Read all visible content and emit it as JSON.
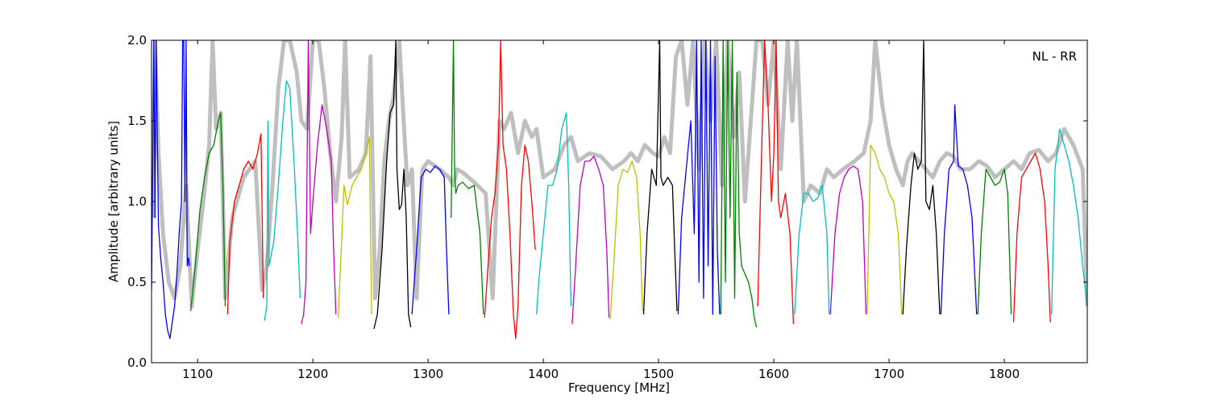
{
  "chart_data": {
    "type": "line",
    "annotation": "NL - RR",
    "xlabel": "Frequency [MHz]",
    "ylabel": "Amplitude [arbitrary units]",
    "xlim": [
      1060,
      1872
    ],
    "ylim": [
      0.0,
      2.0
    ],
    "x_ticks": [
      1100,
      1200,
      1300,
      1400,
      1500,
      1600,
      1700,
      1800
    ],
    "x_tick_labels": [
      "1100",
      "1200",
      "1300",
      "1400",
      "1500",
      "1600",
      "1700",
      "1800"
    ],
    "y_ticks": [
      0.0,
      0.5,
      1.0,
      1.5,
      2.0
    ],
    "y_tick_labels": [
      "0.0",
      "0.5",
      "1.0",
      "1.5",
      "2.0"
    ],
    "grid": false,
    "background_trace": {
      "color": "#bfbfbf",
      "x": [
        1061,
        1063,
        1066,
        1070,
        1075,
        1080,
        1085,
        1090,
        1095,
        1100,
        1105,
        1110,
        1113,
        1116,
        1120,
        1124,
        1130,
        1140,
        1150,
        1156,
        1160,
        1165,
        1170,
        1175,
        1180,
        1186,
        1190,
        1195,
        1200,
        1205,
        1210,
        1215,
        1220,
        1225,
        1228,
        1232,
        1240,
        1246,
        1250,
        1254,
        1258,
        1262,
        1266,
        1270,
        1275,
        1278,
        1282,
        1286,
        1290,
        1295,
        1300,
        1310,
        1318,
        1322,
        1325,
        1330,
        1340,
        1350,
        1356,
        1362,
        1366,
        1372,
        1378,
        1384,
        1390,
        1394,
        1400,
        1410,
        1418,
        1424,
        1430,
        1440,
        1450,
        1460,
        1470,
        1476,
        1482,
        1488,
        1495,
        1500,
        1505,
        1510,
        1515,
        1520,
        1525,
        1530,
        1535,
        1540,
        1545,
        1550,
        1555,
        1560,
        1565,
        1570,
        1575,
        1580,
        1585,
        1590,
        1595,
        1600,
        1606,
        1612,
        1616,
        1620,
        1626,
        1632,
        1640,
        1646,
        1652,
        1660,
        1670,
        1678,
        1684,
        1688,
        1694,
        1700,
        1706,
        1712,
        1716,
        1720,
        1726,
        1732,
        1738,
        1744,
        1750,
        1756,
        1762,
        1770,
        1778,
        1785,
        1792,
        1800,
        1808,
        1815,
        1822,
        1830,
        1838,
        1845,
        1852,
        1860,
        1868,
        1872
      ],
      "y": [
        0.9,
        2.0,
        1.3,
        0.8,
        0.5,
        0.4,
        0.6,
        1.1,
        0.35,
        0.7,
        1.0,
        1.35,
        2.0,
        1.45,
        1.55,
        0.4,
        0.9,
        1.15,
        1.25,
        0.45,
        0.6,
        1.1,
        1.7,
        2.0,
        2.0,
        1.8,
        1.5,
        1.45,
        2.0,
        2.0,
        1.7,
        1.3,
        1.0,
        1.4,
        2.0,
        1.15,
        1.2,
        1.3,
        1.9,
        0.4,
        0.7,
        1.25,
        1.5,
        1.65,
        2.0,
        1.6,
        1.1,
        1.2,
        0.4,
        1.2,
        1.25,
        1.2,
        1.15,
        1.1,
        1.2,
        1.18,
        1.12,
        1.05,
        0.4,
        1.5,
        1.45,
        1.55,
        1.3,
        1.5,
        1.4,
        1.45,
        1.15,
        1.2,
        1.35,
        1.4,
        1.25,
        1.3,
        1.28,
        1.2,
        1.25,
        1.3,
        1.25,
        1.35,
        1.3,
        1.28,
        1.4,
        1.3,
        1.9,
        2.0,
        1.6,
        2.0,
        1.2,
        2.0,
        1.5,
        2.0,
        1.1,
        2.0,
        1.4,
        1.8,
        1.0,
        1.5,
        2.0,
        2.0,
        1.6,
        2.0,
        1.2,
        2.0,
        1.5,
        2.0,
        1.0,
        1.1,
        1.05,
        1.2,
        1.15,
        1.2,
        1.25,
        1.3,
        1.5,
        2.0,
        1.6,
        1.35,
        1.2,
        1.1,
        1.25,
        1.3,
        1.25,
        1.2,
        1.15,
        1.25,
        1.3,
        1.28,
        1.2,
        1.2,
        1.25,
        1.22,
        1.15,
        1.2,
        1.25,
        1.2,
        1.3,
        1.32,
        1.25,
        1.3,
        1.45,
        1.35,
        1.2,
        0.35
      ]
    },
    "series": [
      {
        "color": "#0000ff",
        "x": [
          1060,
          1062,
          1063,
          1064,
          1066,
          1068,
          1070,
          1072,
          1074,
          1076,
          1078,
          1080,
          1082,
          1084,
          1086,
          1087,
          1088,
          1089,
          1090,
          1091,
          1092,
          1093
        ],
        "y": [
          0.45,
          2.0,
          0.9,
          2.0,
          0.85,
          0.65,
          0.5,
          0.3,
          0.2,
          0.15,
          0.25,
          0.35,
          0.55,
          0.8,
          1.0,
          2.0,
          2.0,
          1.0,
          2.0,
          0.6,
          0.65,
          0.6
        ]
      },
      {
        "color": "#008000",
        "x": [
          1094,
          1098,
          1102,
          1106,
          1110,
          1114,
          1118,
          1120,
          1122,
          1124
        ],
        "y": [
          0.32,
          0.6,
          0.95,
          1.15,
          1.3,
          1.35,
          1.5,
          1.55,
          1.1,
          0.35
        ]
      },
      {
        "color": "#ff0000",
        "x": [
          1126,
          1128,
          1132,
          1136,
          1140,
          1144,
          1148,
          1152,
          1155,
          1157
        ],
        "y": [
          0.3,
          0.75,
          1.0,
          1.1,
          1.2,
          1.25,
          1.2,
          1.3,
          1.42,
          0.4
        ]
      },
      {
        "color": "#00bfbf",
        "x": [
          1158,
          1160,
          1161,
          1162,
          1166,
          1170,
          1174,
          1177,
          1180,
          1184,
          1187,
          1189
        ],
        "y": [
          0.26,
          0.35,
          1.5,
          0.6,
          0.75,
          1.1,
          1.5,
          1.75,
          1.7,
          1.2,
          0.75,
          0.4
        ]
      },
      {
        "color": "#bf00bf",
        "x": [
          1190,
          1192,
          1194,
          1196,
          1198,
          1200,
          1204,
          1208,
          1212,
          1216,
          1218,
          1220
        ],
        "y": [
          0.24,
          0.3,
          0.5,
          2.0,
          0.8,
          1.0,
          1.35,
          1.6,
          1.45,
          1.25,
          0.7,
          0.3
        ]
      },
      {
        "color": "#bfbf00",
        "x": [
          1222,
          1224,
          1227,
          1230,
          1234,
          1238,
          1242,
          1246,
          1249,
          1251
        ],
        "y": [
          0.28,
          0.6,
          1.1,
          0.98,
          1.1,
          1.15,
          1.2,
          1.3,
          1.4,
          0.3
        ]
      },
      {
        "color": "#000000",
        "x": [
          1253,
          1256,
          1260,
          1264,
          1267,
          1270,
          1272,
          1273,
          1275,
          1277,
          1279,
          1281,
          1283,
          1285
        ],
        "y": [
          0.21,
          0.3,
          0.7,
          1.25,
          1.55,
          1.6,
          2.0,
          1.2,
          0.95,
          0.98,
          1.2,
          0.9,
          0.3,
          0.22
        ]
      },
      {
        "color": "#0000ff",
        "x": [
          1286,
          1290,
          1294,
          1298,
          1302,
          1306,
          1310,
          1314,
          1316,
          1318
        ],
        "y": [
          0.3,
          0.7,
          1.15,
          1.2,
          1.18,
          1.22,
          1.2,
          1.15,
          0.7,
          0.3
        ]
      },
      {
        "color": "#008000",
        "x": [
          1320,
          1322,
          1323,
          1324,
          1326,
          1330,
          1335,
          1340,
          1345,
          1348
        ],
        "y": [
          0.9,
          2.0,
          1.2,
          1.05,
          1.1,
          1.12,
          1.08,
          1.1,
          0.8,
          0.3
        ]
      },
      {
        "color": "#ff0000",
        "x": [
          1349,
          1352,
          1355,
          1358,
          1361,
          1363,
          1365,
          1368,
          1371,
          1374,
          1376,
          1378,
          1381,
          1384,
          1387,
          1390,
          1393
        ],
        "y": [
          0.28,
          0.6,
          0.9,
          1.05,
          1.35,
          2.0,
          1.35,
          1.2,
          0.8,
          0.3,
          0.15,
          0.35,
          1.1,
          1.35,
          1.25,
          1.0,
          0.7
        ]
      },
      {
        "color": "#00bfbf",
        "x": [
          1394,
          1396,
          1400,
          1404,
          1408,
          1412,
          1416,
          1420,
          1422,
          1424
        ],
        "y": [
          0.3,
          0.5,
          0.8,
          1.1,
          1.1,
          1.2,
          1.45,
          1.55,
          1.1,
          0.35
        ]
      },
      {
        "color": "#bf00bf",
        "x": [
          1425,
          1428,
          1432,
          1436,
          1440,
          1444,
          1448,
          1452,
          1455,
          1457
        ],
        "y": [
          0.24,
          0.6,
          1.1,
          1.25,
          1.25,
          1.28,
          1.2,
          1.1,
          0.7,
          0.28
        ]
      },
      {
        "color": "#bfbf00",
        "x": [
          1458,
          1461,
          1465,
          1469,
          1473,
          1477,
          1481,
          1484,
          1486
        ],
        "y": [
          0.27,
          0.6,
          1.1,
          1.2,
          1.18,
          1.25,
          1.15,
          0.8,
          0.32
        ]
      },
      {
        "color": "#000000",
        "x": [
          1487,
          1490,
          1494,
          1498,
          1501,
          1502,
          1504,
          1508,
          1512,
          1514,
          1516
        ],
        "y": [
          0.3,
          0.8,
          1.2,
          1.1,
          2.0,
          1.15,
          1.1,
          1.15,
          1.1,
          0.7,
          0.32
        ]
      },
      {
        "color": "#0000ff",
        "x": [
          1517,
          1520,
          1524,
          1528,
          1531,
          1533,
          1535,
          1537,
          1539,
          1541,
          1543,
          1545,
          1547,
          1549,
          1551,
          1553
        ],
        "y": [
          0.3,
          0.9,
          1.2,
          1.5,
          0.8,
          2.0,
          0.5,
          2.0,
          0.4,
          2.0,
          0.6,
          2.0,
          0.3,
          1.9,
          0.7,
          0.3
        ]
      },
      {
        "color": "#008000",
        "x": [
          1554,
          1556,
          1558,
          1560,
          1562,
          1564,
          1566,
          1568,
          1570,
          1572,
          1575,
          1578,
          1581,
          1583,
          1585
        ],
        "y": [
          0.3,
          2.0,
          0.5,
          2.0,
          0.9,
          2.0,
          0.4,
          1.8,
          0.8,
          0.6,
          0.55,
          0.5,
          0.4,
          0.28,
          0.22
        ]
      },
      {
        "color": "#ff0000",
        "x": [
          1586,
          1589,
          1592,
          1595,
          1598,
          1600,
          1602,
          1604,
          1606,
          1610,
          1614,
          1617
        ],
        "y": [
          0.35,
          1.2,
          2.0,
          1.6,
          1.0,
          1.3,
          2.0,
          1.0,
          0.9,
          1.05,
          0.8,
          0.24
        ]
      },
      {
        "color": "#00bfbf",
        "x": [
          1618,
          1622,
          1626,
          1630,
          1634,
          1638,
          1642,
          1646,
          1648
        ],
        "y": [
          0.3,
          0.8,
          1.05,
          1.05,
          1.0,
          1.02,
          1.1,
          0.8,
          0.3
        ]
      },
      {
        "color": "#bf00bf",
        "x": [
          1649,
          1653,
          1657,
          1661,
          1665,
          1669,
          1673,
          1677,
          1680
        ],
        "y": [
          0.3,
          0.8,
          1.05,
          1.15,
          1.2,
          1.22,
          1.2,
          1.0,
          0.3
        ]
      },
      {
        "color": "#bfbf00",
        "x": [
          1681,
          1684,
          1688,
          1692,
          1696,
          1700,
          1704,
          1708,
          1711
        ],
        "y": [
          0.3,
          1.35,
          1.3,
          1.2,
          1.15,
          1.05,
          1.0,
          0.8,
          0.3
        ]
      },
      {
        "color": "#000000",
        "x": [
          1712,
          1715,
          1719,
          1722,
          1725,
          1728,
          1730,
          1732,
          1735,
          1738,
          1741,
          1744
        ],
        "y": [
          0.3,
          0.7,
          1.1,
          1.3,
          1.2,
          1.25,
          2.0,
          1.0,
          0.95,
          1.1,
          0.8,
          0.3
        ]
      },
      {
        "color": "#0000ff",
        "x": [
          1745,
          1748,
          1752,
          1756,
          1757,
          1760,
          1764,
          1768,
          1772,
          1776
        ],
        "y": [
          0.3,
          0.8,
          1.2,
          1.25,
          1.6,
          1.22,
          1.2,
          1.1,
          0.9,
          0.3
        ]
      },
      {
        "color": "#008000",
        "x": [
          1777,
          1780,
          1784,
          1788,
          1792,
          1796,
          1800,
          1803,
          1806
        ],
        "y": [
          0.3,
          0.8,
          1.2,
          1.15,
          1.1,
          1.12,
          1.2,
          1.05,
          0.3
        ]
      },
      {
        "color": "#ff0000",
        "x": [
          1808,
          1811,
          1815,
          1819,
          1823,
          1827,
          1831,
          1835,
          1838,
          1840
        ],
        "y": [
          0.25,
          0.8,
          1.15,
          1.2,
          1.25,
          1.3,
          1.2,
          1.0,
          0.6,
          0.25
        ]
      },
      {
        "color": "#00bfbf",
        "x": [
          1841,
          1844,
          1848,
          1852,
          1856,
          1860,
          1864,
          1868,
          1872
        ],
        "y": [
          0.3,
          1.2,
          1.45,
          1.35,
          1.25,
          1.1,
          0.9,
          0.6,
          0.35
        ]
      }
    ]
  }
}
